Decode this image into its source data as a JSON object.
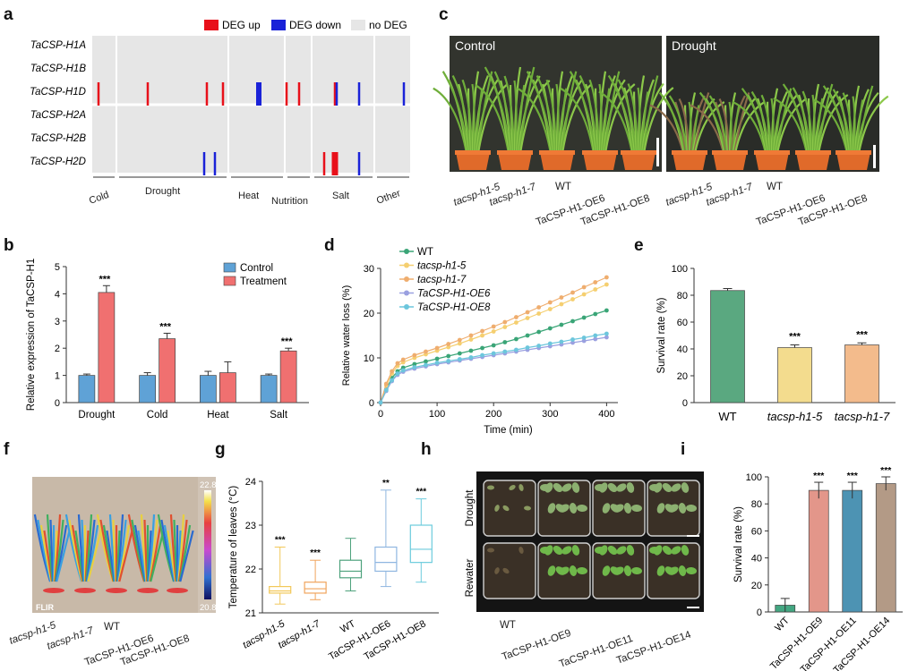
{
  "panel_letters": [
    "a",
    "b",
    "c",
    "d",
    "e",
    "f",
    "g",
    "h",
    "i"
  ],
  "panel_a": {
    "legend": [
      "DEG up",
      "DEG down",
      "no DEG"
    ],
    "genes": [
      "TaCSP-H1A",
      "TaCSP-H1B",
      "TaCSP-H1D",
      "TaCSP-H2A",
      "TaCSP-H2B",
      "TaCSP-H2D"
    ],
    "conditions": [
      "Cold",
      "Drought",
      "Heat",
      "Nutrition",
      "Salt",
      "Other"
    ],
    "colors": {
      "up": "#e8101a",
      "down": "#1a22d8",
      "none": "#e6e6e6"
    },
    "deg_marks": [
      {
        "gene": "TaCSP-H1D",
        "cond": "Cold",
        "dir": "up"
      },
      {
        "gene": "TaCSP-H1D",
        "cond": "Drought",
        "dir": "up"
      },
      {
        "gene": "TaCSP-H1D",
        "cond": "Drought",
        "dir": "up"
      },
      {
        "gene": "TaCSP-H1D",
        "cond": "Drought",
        "dir": "up"
      },
      {
        "gene": "TaCSP-H1D",
        "cond": "Heat",
        "dir": "down"
      },
      {
        "gene": "TaCSP-H1D",
        "cond": "Nutrition",
        "dir": "up"
      },
      {
        "gene": "TaCSP-H1D",
        "cond": "Nutrition",
        "dir": "up"
      },
      {
        "gene": "TaCSP-H1D",
        "cond": "Salt",
        "dir": "up"
      },
      {
        "gene": "TaCSP-H1D",
        "cond": "Salt",
        "dir": "down"
      },
      {
        "gene": "TaCSP-H1D",
        "cond": "Salt",
        "dir": "down"
      },
      {
        "gene": "TaCSP-H1D",
        "cond": "Other",
        "dir": "down"
      },
      {
        "gene": "TaCSP-H2D",
        "cond": "Drought",
        "dir": "down"
      },
      {
        "gene": "TaCSP-H2D",
        "cond": "Drought",
        "dir": "down"
      },
      {
        "gene": "TaCSP-H2D",
        "cond": "Salt",
        "dir": "up"
      },
      {
        "gene": "TaCSP-H2D",
        "cond": "Salt",
        "dir": "up"
      },
      {
        "gene": "TaCSP-H2D",
        "cond": "Salt",
        "dir": "down"
      }
    ]
  },
  "panel_c": {
    "titles": [
      "Control",
      "Drought"
    ],
    "genotypes": [
      "tacsp-h1-5",
      "tacsp-h1-7",
      "WT",
      "TaCSP-H1-OE6",
      "TaCSP-H1-OE8"
    ]
  },
  "panel_f": {
    "scale_max": "22.8",
    "scale_min": "20.8",
    "brand": "FLIR"
  },
  "panel_h": {
    "row_labels": [
      "Drought",
      "Rewater"
    ],
    "genotypes": [
      "WT",
      "TaCSP-H1-OE9",
      "TaCSP-H1-OE11",
      "TaCSP-H1-OE14"
    ]
  },
  "chart_data": [
    {
      "id": "b",
      "type": "bar",
      "ylabel": "Relative expression of TaCSP-H1",
      "categories": [
        "Drought",
        "Cold",
        "Heat",
        "Salt"
      ],
      "ylim": [
        0,
        5
      ],
      "yticks": [
        0,
        1,
        2,
        3,
        4,
        5
      ],
      "series": [
        {
          "name": "Control",
          "color": "#5fa2d6",
          "values": [
            1.0,
            1.0,
            1.0,
            1.0
          ],
          "errors": [
            0.05,
            0.1,
            0.15,
            0.05
          ]
        },
        {
          "name": "Treatment",
          "color": "#f07070",
          "values": [
            4.05,
            2.35,
            1.1,
            1.9
          ],
          "errors": [
            0.25,
            0.2,
            0.4,
            0.1
          ]
        }
      ],
      "significance": [
        "***",
        "***",
        "",
        "***"
      ]
    },
    {
      "id": "d",
      "type": "line",
      "xlabel": "Time (min)",
      "ylabel": "Relative water loss (%)",
      "xlim": [
        0,
        420
      ],
      "ylim": [
        0,
        30
      ],
      "xticks": [
        0,
        100,
        200,
        300,
        400
      ],
      "yticks": [
        0,
        10,
        20,
        30
      ],
      "x": [
        0,
        10,
        20,
        30,
        40,
        60,
        80,
        100,
        120,
        140,
        160,
        180,
        200,
        220,
        240,
        260,
        280,
        300,
        320,
        340,
        360,
        380,
        400
      ],
      "series": [
        {
          "name": "WT",
          "color": "#3aa577",
          "values": [
            0,
            3,
            5.5,
            7,
            7.8,
            8.6,
            9.2,
            9.8,
            10.4,
            11.0,
            11.6,
            12.2,
            12.8,
            13.5,
            14.2,
            15.0,
            15.8,
            16.6,
            17.4,
            18.2,
            19.0,
            19.8,
            20.6
          ]
        },
        {
          "name": "tacsp-h1-5",
          "color": "#f5cf70",
          "values": [
            0,
            3.8,
            6.5,
            8.2,
            9.0,
            10.0,
            10.8,
            11.6,
            12.4,
            13.2,
            14.1,
            15.0,
            15.9,
            16.9,
            17.9,
            18.9,
            19.9,
            20.9,
            22.0,
            23.1,
            24.2,
            25.3,
            26.4
          ]
        },
        {
          "name": "tacsp-h1-7",
          "color": "#efad6e",
          "values": [
            0,
            4.2,
            7.0,
            8.8,
            9.6,
            10.6,
            11.4,
            12.2,
            13.1,
            14.0,
            15.0,
            16.0,
            17.0,
            18.0,
            19.1,
            20.2,
            21.3,
            22.4,
            23.5,
            24.6,
            25.8,
            26.9,
            28.0
          ]
        },
        {
          "name": "TaCSP-H1-OE6",
          "color": "#9aa0e0",
          "values": [
            0,
            2.6,
            4.8,
            6.2,
            6.9,
            7.6,
            8.1,
            8.6,
            9.0,
            9.4,
            9.8,
            10.2,
            10.6,
            11.0,
            11.4,
            11.8,
            12.2,
            12.6,
            13.0,
            13.4,
            13.8,
            14.2,
            14.6
          ]
        },
        {
          "name": "TaCSP-H1-OE8",
          "color": "#6cc6dc",
          "values": [
            0,
            2.8,
            5.0,
            6.5,
            7.2,
            7.9,
            8.4,
            8.9,
            9.3,
            9.7,
            10.1,
            10.6,
            11.0,
            11.4,
            11.8,
            12.3,
            12.7,
            13.2,
            13.6,
            14.1,
            14.5,
            15.0,
            15.4
          ]
        }
      ]
    },
    {
      "id": "e",
      "type": "bar",
      "ylabel": "Survival rate (%)",
      "categories": [
        "WT",
        "tacsp-h1-5",
        "tacsp-h1-7"
      ],
      "ylim": [
        0,
        100
      ],
      "yticks": [
        0,
        20,
        40,
        60,
        80,
        100
      ],
      "colors": [
        "#5aa880",
        "#f3dc8e",
        "#f3bb8c"
      ],
      "values": [
        83.5,
        41,
        43
      ],
      "errors": [
        1.5,
        2,
        1.5
      ],
      "significance": [
        "",
        "***",
        "***"
      ]
    },
    {
      "id": "g",
      "type": "box",
      "ylabel": "Temperature of leaves (°C)",
      "categories": [
        "tacsp-h1-5",
        "tacsp-h1-7",
        "WT",
        "TaCSP-H1-OE6",
        "TaCSP-H1-OE8"
      ],
      "ylim": [
        21,
        24
      ],
      "yticks": [
        21,
        22,
        23,
        24
      ],
      "colors": [
        "#f2c85a",
        "#f0a45c",
        "#4ea27d",
        "#8fb6e0",
        "#6ccbdc"
      ],
      "boxes": [
        {
          "min": 21.2,
          "q1": 21.45,
          "median": 21.5,
          "q3": 21.6,
          "max": 22.5
        },
        {
          "min": 21.3,
          "q1": 21.45,
          "median": 21.55,
          "q3": 21.7,
          "max": 22.2
        },
        {
          "min": 21.5,
          "q1": 21.8,
          "median": 21.95,
          "q3": 22.2,
          "max": 22.7
        },
        {
          "min": 21.6,
          "q1": 21.95,
          "median": 22.15,
          "q3": 22.5,
          "max": 23.8
        },
        {
          "min": 21.7,
          "q1": 22.15,
          "median": 22.45,
          "q3": 23.0,
          "max": 23.6
        }
      ],
      "significance": [
        "***",
        "***",
        "",
        "**",
        "***"
      ]
    },
    {
      "id": "i",
      "type": "bar",
      "ylabel": "Survival rate (%)",
      "categories": [
        "WT",
        "TaCSP-H1-OE9",
        "TaCSP-H1-OE11",
        "TaCSP-H1-OE14"
      ],
      "ylim": [
        0,
        100
      ],
      "yticks": [
        0,
        20,
        40,
        60,
        80,
        100
      ],
      "colors": [
        "#43a681",
        "#e3968a",
        "#4d93b3",
        "#b39a86"
      ],
      "values": [
        5,
        90,
        90,
        95
      ],
      "errors": [
        5,
        6,
        6,
        5
      ],
      "significance": [
        "",
        "***",
        "***",
        "***"
      ]
    }
  ]
}
